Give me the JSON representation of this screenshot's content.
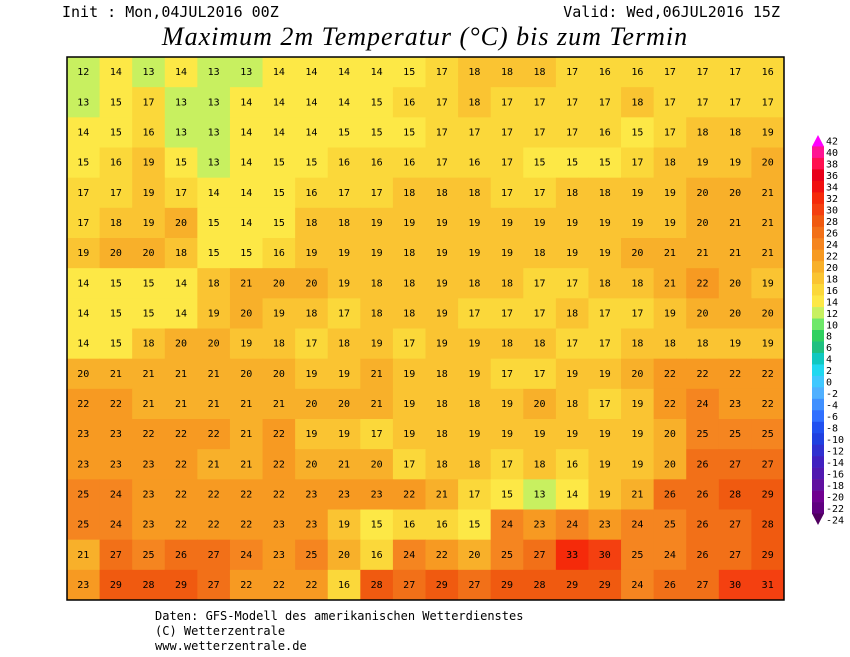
{
  "header": {
    "init": "Init : Mon,04JUL2016 00Z",
    "valid": "Valid: Wed,06JUL2016 15Z",
    "title": "Maximum 2m Temperatur (°C) bis zum Termin"
  },
  "colorbar": {
    "levels": [
      42,
      40,
      38,
      36,
      34,
      32,
      30,
      28,
      26,
      24,
      22,
      20,
      18,
      16,
      14,
      12,
      10,
      8,
      6,
      4,
      2,
      0,
      -2,
      -4,
      -6,
      -8,
      -10,
      -12,
      -14,
      -16,
      -18,
      -20,
      -22,
      -24
    ],
    "colors": [
      "#ff00ff",
      "#ff1493",
      "#ff1050",
      "#e8001a",
      "#f01010",
      "#f52a0a",
      "#f44010",
      "#f05a10",
      "#f27018",
      "#f58520",
      "#f79a22",
      "#f8b02a",
      "#fac432",
      "#fbd83a",
      "#fde846",
      "#c8f060",
      "#6ee86a",
      "#30d060",
      "#20c080",
      "#10c8c0",
      "#20d8f0",
      "#40c8ff",
      "#50b0ff",
      "#4090ff",
      "#3070ff",
      "#2050f0",
      "#2040e0",
      "#3030d0",
      "#4020c0",
      "#5018b0",
      "#6010a0",
      "#700090",
      "#600080",
      "#500060"
    ]
  },
  "map": {
    "values": [
      [
        12,
        14,
        13,
        14,
        13,
        13,
        14,
        14,
        14,
        14,
        15,
        17,
        18,
        18,
        18,
        17,
        16,
        16,
        17,
        17,
        17,
        16
      ],
      [
        13,
        15,
        17,
        13,
        13,
        14,
        14,
        14,
        14,
        15,
        16,
        17,
        18,
        17,
        17,
        17,
        17,
        18,
        17,
        17,
        17,
        17
      ],
      [
        14,
        15,
        16,
        13,
        13,
        14,
        14,
        14,
        15,
        15,
        15,
        17,
        17,
        17,
        17,
        17,
        16,
        15,
        17,
        18,
        18,
        19
      ],
      [
        15,
        16,
        19,
        15,
        13,
        14,
        15,
        15,
        16,
        16,
        16,
        17,
        16,
        17,
        15,
        15,
        15,
        17,
        18,
        19,
        19,
        20
      ],
      [
        17,
        17,
        19,
        17,
        14,
        14,
        15,
        16,
        17,
        17,
        18,
        18,
        18,
        17,
        17,
        18,
        18,
        19,
        19,
        20,
        20,
        21
      ],
      [
        17,
        18,
        19,
        20,
        15,
        14,
        15,
        18,
        18,
        19,
        19,
        19,
        19,
        19,
        19,
        19,
        19,
        19,
        19,
        20,
        21,
        21
      ],
      [
        19,
        20,
        20,
        18,
        15,
        15,
        16,
        19,
        19,
        19,
        18,
        19,
        19,
        19,
        18,
        19,
        19,
        20,
        21,
        21,
        21,
        21
      ],
      [
        14,
        15,
        15,
        14,
        18,
        21,
        20,
        20,
        19,
        18,
        18,
        19,
        18,
        18,
        17,
        17,
        18,
        18,
        21,
        22,
        20,
        19
      ],
      [
        14,
        15,
        15,
        14,
        19,
        20,
        19,
        18,
        17,
        18,
        18,
        19,
        17,
        17,
        17,
        18,
        17,
        17,
        19,
        20,
        20,
        20
      ],
      [
        14,
        15,
        18,
        20,
        20,
        19,
        18,
        17,
        18,
        19,
        17,
        19,
        19,
        18,
        18,
        17,
        17,
        18,
        18,
        18,
        19,
        19
      ],
      [
        20,
        21,
        21,
        21,
        21,
        20,
        20,
        19,
        19,
        21,
        19,
        18,
        19,
        17,
        17,
        19,
        19,
        20,
        22,
        22,
        22,
        22
      ],
      [
        22,
        22,
        21,
        21,
        21,
        21,
        21,
        20,
        20,
        21,
        19,
        18,
        18,
        19,
        20,
        18,
        17,
        19,
        22,
        24,
        23,
        22
      ],
      [
        23,
        23,
        22,
        22,
        22,
        21,
        22,
        19,
        19,
        17,
        19,
        18,
        19,
        19,
        19,
        19,
        19,
        19,
        20,
        25,
        25,
        25
      ],
      [
        23,
        23,
        23,
        22,
        21,
        21,
        22,
        20,
        21,
        20,
        17,
        18,
        18,
        17,
        18,
        16,
        19,
        19,
        20,
        26,
        27,
        27
      ],
      [
        25,
        24,
        23,
        22,
        22,
        22,
        22,
        23,
        23,
        23,
        22,
        21,
        17,
        15,
        13,
        14,
        19,
        21,
        26,
        26,
        28,
        29
      ],
      [
        25,
        24,
        23,
        22,
        22,
        22,
        23,
        23,
        19,
        15,
        16,
        16,
        15,
        24,
        23,
        24,
        23,
        24,
        25,
        26,
        27,
        28
      ],
      [
        21,
        27,
        25,
        26,
        27,
        24,
        23,
        25,
        20,
        16,
        24,
        22,
        20,
        25,
        27,
        33,
        30,
        25,
        24,
        26,
        27,
        29
      ],
      [
        23,
        29,
        28,
        29,
        27,
        22,
        22,
        22,
        16,
        28,
        27,
        29,
        27,
        29,
        28,
        29,
        29,
        24,
        26,
        27,
        30,
        31
      ]
    ]
  },
  "footer": {
    "lines": [
      "Daten: GFS-Modell des amerikanischen Wetterdienstes",
      "(C) Wetterzentrale",
      "www.wetterzentrale.de"
    ]
  }
}
